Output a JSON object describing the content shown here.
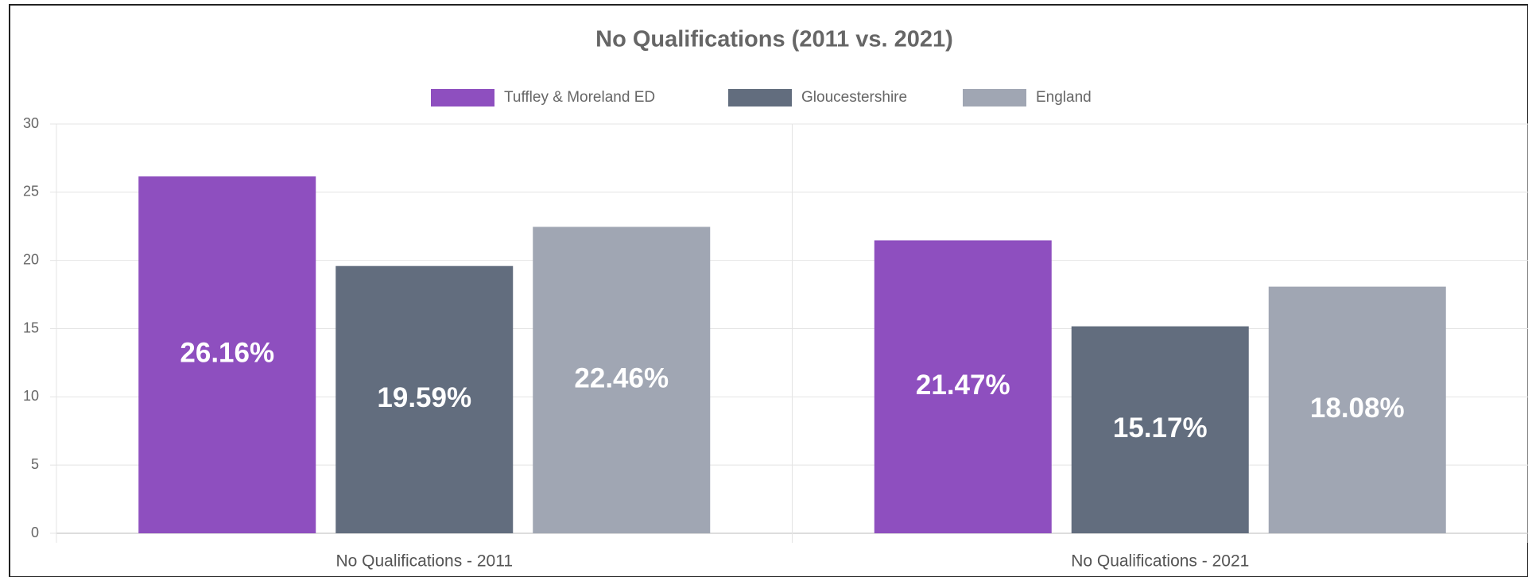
{
  "chart_data": {
    "type": "bar",
    "title": "No Qualifications (2011 vs. 2021)",
    "categories": [
      "No Qualifications - 2011",
      "No Qualifications - 2021"
    ],
    "series": [
      {
        "name": "Tuffley & Moreland ED",
        "color": "#8e4fbf",
        "values": [
          26.16,
          21.47
        ],
        "value_labels": [
          "26.16%",
          "21.47%"
        ]
      },
      {
        "name": "Gloucestershire",
        "color": "#626d7e",
        "values": [
          19.59,
          15.17
        ],
        "value_labels": [
          "19.59%",
          "15.17%"
        ]
      },
      {
        "name": "England",
        "color": "#a0a6b3",
        "values": [
          22.46,
          18.08
        ],
        "value_labels": [
          "22.46%",
          "18.08%"
        ]
      }
    ],
    "ylim": [
      0,
      30
    ],
    "yticks": [
      0,
      5,
      10,
      15,
      20,
      25,
      30
    ],
    "grid": true,
    "legend": "top"
  }
}
